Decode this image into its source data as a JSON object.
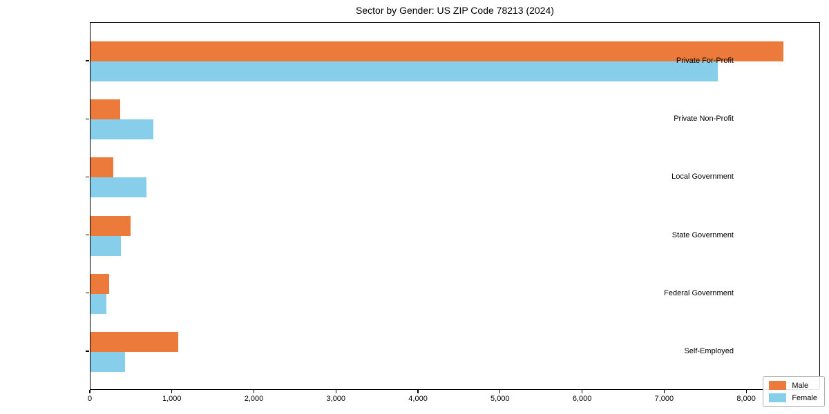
{
  "chart_data": {
    "type": "bar",
    "orientation": "horizontal",
    "title": "Sector by Gender: US ZIP Code 78213 (2024)",
    "categories": [
      "Private For-Profit",
      "Private Non-Profit",
      "Local Government",
      "State Government",
      "Federal Government",
      "Self-Employed"
    ],
    "series": [
      {
        "name": "Male",
        "color": "#EC7A3B",
        "values": [
          8460,
          360,
          280,
          490,
          230,
          1075
        ]
      },
      {
        "name": "Female",
        "color": "#87CEEB",
        "values": [
          7660,
          770,
          680,
          370,
          195,
          420
        ]
      }
    ],
    "xlabel": "",
    "ylabel": "",
    "xlim": [
      0,
      8900
    ],
    "xticks": [
      0,
      1000,
      2000,
      3000,
      4000,
      5000,
      6000,
      7000,
      8000
    ],
    "xtick_labels": [
      "0",
      "1,000",
      "2,000",
      "3,000",
      "4,000",
      "5,000",
      "6,000",
      "7,000",
      "8,000"
    ],
    "grid": false,
    "legend": {
      "position": "lower right"
    }
  }
}
